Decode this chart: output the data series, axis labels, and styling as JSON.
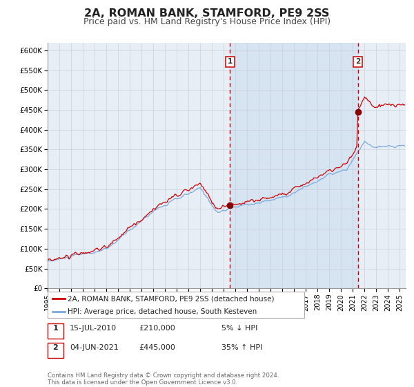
{
  "title": "2A, ROMAN BANK, STAMFORD, PE9 2SS",
  "subtitle": "Price paid vs. HM Land Registry's House Price Index (HPI)",
  "ylim": [
    0,
    620000
  ],
  "yticks": [
    0,
    50000,
    100000,
    150000,
    200000,
    250000,
    300000,
    350000,
    400000,
    450000,
    500000,
    550000,
    600000
  ],
  "ytick_labels": [
    "£0",
    "£50K",
    "£100K",
    "£150K",
    "£200K",
    "£250K",
    "£300K",
    "£350K",
    "£400K",
    "£450K",
    "£500K",
    "£550K",
    "£600K"
  ],
  "hpi_color": "#7aaadd",
  "property_color": "#cc0000",
  "marker_color": "#880000",
  "bg_color": "#e8eef5",
  "grid_color": "#c8d0dc",
  "vline_color": "#cc0000",
  "highlight_bg": "#c8ddf0",
  "legend_label_property": "2A, ROMAN BANK, STAMFORD, PE9 2SS (detached house)",
  "legend_label_hpi": "HPI: Average price, detached house, South Kesteven",
  "transaction1_date": "15-JUL-2010",
  "transaction1_price": 210000,
  "transaction1_pct": "5% ↓ HPI",
  "transaction1_year": 2010.54,
  "transaction2_date": "04-JUN-2021",
  "transaction2_price": 445000,
  "transaction2_pct": "35% ↑ HPI",
  "transaction2_year": 2021.42,
  "footer_line1": "Contains HM Land Registry data © Crown copyright and database right 2024.",
  "footer_line2": "This data is licensed under the Open Government Licence v3.0."
}
